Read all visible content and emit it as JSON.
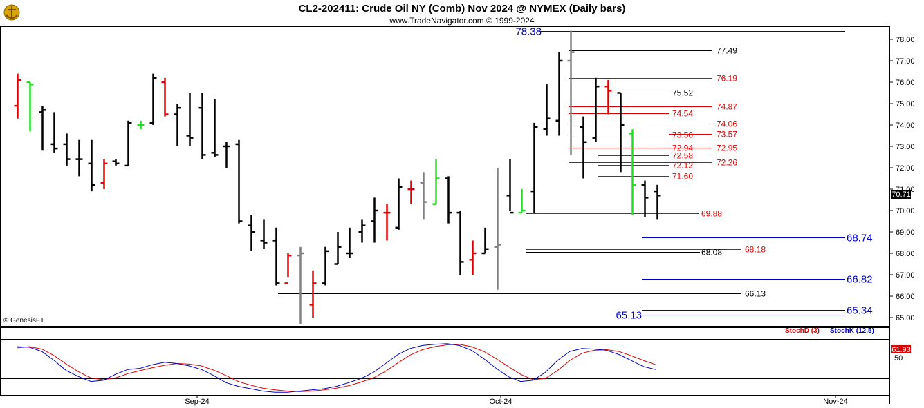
{
  "header": {
    "title": "CL2-202411:  Crude Oil NY (Comb) Nov 2024 @ NYMEX  (Daily bars)",
    "subtitle": "www.TradeNavigator.com © 1999-2024"
  },
  "watermark": "© GenesisFT",
  "logo_icon": "golden-anchor-logo-icon",
  "colors": {
    "up": "#000000",
    "down": "#000000",
    "red": "#e00000",
    "green": "#22dd22",
    "gray": "#808080",
    "blue": "#0000cc",
    "stochD": "#dd0000",
    "stochK": "#0000cc"
  },
  "price_axis": {
    "ticks": [
      "78.00",
      "77.00",
      "76.00",
      "75.00",
      "74.00",
      "73.00",
      "72.00",
      "71.00",
      "70.00",
      "69.00",
      "68.00",
      "67.00",
      "66.00",
      "65.00"
    ],
    "last_price": "70.71"
  },
  "stoch_axis": {
    "label_50": "50",
    "stochD_value": "61.93",
    "legend_d": "StochD (3)",
    "legend_k": "StochK (12,5)"
  },
  "time_axis": {
    "labels": [
      "Sep-24",
      "Oct-24",
      "Nov-24"
    ]
  },
  "levels": [
    {
      "label": "78.38",
      "price": 78.38,
      "color": "blue",
      "big": true,
      "label_side": "left"
    },
    {
      "label": "77.49",
      "price": 77.49,
      "color": "black"
    },
    {
      "label": "76.19",
      "price": 76.19,
      "color": "red"
    },
    {
      "label": "75.52",
      "price": 75.52,
      "color": "black"
    },
    {
      "label": "74.87",
      "price": 74.87,
      "color": "red"
    },
    {
      "label": "74.54",
      "price": 74.54,
      "color": "red"
    },
    {
      "label": "74.06",
      "price": 74.06,
      "color": "red"
    },
    {
      "label": "73.56",
      "price": 73.56,
      "color": "red"
    },
    {
      "label": "73.57",
      "price": 73.57,
      "color": "red"
    },
    {
      "label": "72.94",
      "price": 72.94,
      "color": "red"
    },
    {
      "label": "72.95",
      "price": 72.95,
      "color": "red"
    },
    {
      "label": "72.58",
      "price": 72.58,
      "color": "red"
    },
    {
      "label": "72.12",
      "price": 72.12,
      "color": "red"
    },
    {
      "label": "72.26",
      "price": 72.26,
      "color": "red"
    },
    {
      "label": "71.60",
      "price": 71.6,
      "color": "red"
    },
    {
      "label": "69.88",
      "price": 69.88,
      "color": "red"
    },
    {
      "label": "68.74",
      "price": 68.74,
      "color": "blue",
      "big": true
    },
    {
      "label": "68.18",
      "price": 68.18,
      "color": "red"
    },
    {
      "label": "68.08",
      "price": 68.08,
      "color": "black"
    },
    {
      "label": "66.82",
      "price": 66.82,
      "color": "blue",
      "big": true
    },
    {
      "label": "66.13",
      "price": 66.13,
      "color": "black"
    },
    {
      "label": "65.34",
      "price": 65.34,
      "color": "blue",
      "big": true
    },
    {
      "label": "65.13",
      "price": 65.13,
      "color": "blue",
      "big": true,
      "label_side": "left"
    }
  ],
  "chart_data": {
    "type": "ohlc",
    "title": "CL2-202411:  Crude Oil NY (Comb) Nov 2024 @ NYMEX  (Daily bars)",
    "x_labels": [
      "Sep-24",
      "Oct-24",
      "Nov-24"
    ],
    "ylim": [
      64.6,
      78.7
    ],
    "price_bars": [
      {
        "o": 74.9,
        "h": 76.4,
        "l": 74.3,
        "c": 76.1,
        "col": "red"
      },
      {
        "o": 76.0,
        "h": 76.0,
        "l": 73.7,
        "c": 75.9,
        "col": "green"
      },
      {
        "o": 74.6,
        "h": 74.9,
        "l": 72.8,
        "c": 74.7,
        "col": "black"
      },
      {
        "o": 73.1,
        "h": 74.6,
        "l": 72.7,
        "c": 72.9,
        "col": "black"
      },
      {
        "o": 73.1,
        "h": 73.6,
        "l": 72.1,
        "c": 72.4,
        "col": "black"
      },
      {
        "o": 72.4,
        "h": 73.3,
        "l": 71.6,
        "c": 72.4,
        "col": "black"
      },
      {
        "o": 72.2,
        "h": 73.3,
        "l": 70.9,
        "c": 71.2,
        "col": "black"
      },
      {
        "o": 71.3,
        "h": 72.4,
        "l": 71.0,
        "c": 72.2,
        "col": "red"
      },
      {
        "o": 72.3,
        "h": 72.4,
        "l": 72.1,
        "c": 72.2,
        "col": "black"
      },
      {
        "o": 72.1,
        "h": 74.2,
        "l": 72.1,
        "c": 74.1,
        "col": "black"
      },
      {
        "o": 74.0,
        "h": 74.2,
        "l": 73.8,
        "c": 74.0,
        "col": "green"
      },
      {
        "o": 74.1,
        "h": 76.4,
        "l": 74.0,
        "c": 76.2,
        "col": "black"
      },
      {
        "o": 76.0,
        "h": 76.2,
        "l": 74.4,
        "c": 74.5,
        "col": "red"
      },
      {
        "o": 74.5,
        "h": 75.0,
        "l": 73.0,
        "c": 74.8,
        "col": "black"
      },
      {
        "o": 73.5,
        "h": 75.5,
        "l": 73.0,
        "c": 73.4,
        "col": "black"
      },
      {
        "o": 74.8,
        "h": 75.5,
        "l": 72.4,
        "c": 72.6,
        "col": "black"
      },
      {
        "o": 72.7,
        "h": 75.2,
        "l": 72.5,
        "c": 72.6,
        "col": "black"
      },
      {
        "o": 73.0,
        "h": 73.2,
        "l": 72.0,
        "c": 73.0,
        "col": "black"
      },
      {
        "o": 73.1,
        "h": 73.3,
        "l": 69.4,
        "c": 69.5,
        "col": "black"
      },
      {
        "o": 69.3,
        "h": 69.8,
        "l": 68.1,
        "c": 69.0,
        "col": "black"
      },
      {
        "o": 68.6,
        "h": 69.6,
        "l": 68.2,
        "c": 68.5,
        "col": "black"
      },
      {
        "o": 68.6,
        "h": 69.2,
        "l": 66.5,
        "c": 66.6,
        "col": "black"
      },
      {
        "o": 66.6,
        "h": 68.0,
        "l": 66.9,
        "c": 67.9,
        "col": "red"
      },
      {
        "o": 67.9,
        "h": 68.3,
        "l": 64.7,
        "c": 68.0,
        "col": "gray"
      },
      {
        "o": 65.6,
        "h": 67.2,
        "l": 65.0,
        "c": 66.6,
        "col": "red"
      },
      {
        "o": 66.6,
        "h": 68.3,
        "l": 66.5,
        "c": 68.1,
        "col": "black"
      },
      {
        "o": 67.5,
        "h": 69.0,
        "l": 67.5,
        "c": 68.3,
        "col": "black"
      },
      {
        "o": 68.0,
        "h": 69.2,
        "l": 67.8,
        "c": 68.0,
        "col": "black"
      },
      {
        "o": 69.0,
        "h": 69.6,
        "l": 68.5,
        "c": 69.3,
        "col": "black"
      },
      {
        "o": 69.5,
        "h": 70.6,
        "l": 68.5,
        "c": 70.0,
        "col": "black"
      },
      {
        "o": 69.9,
        "h": 70.3,
        "l": 68.6,
        "c": 69.9,
        "col": "red"
      },
      {
        "o": 69.2,
        "h": 71.5,
        "l": 69.1,
        "c": 71.1,
        "col": "black"
      },
      {
        "o": 71.0,
        "h": 71.4,
        "l": 70.3,
        "c": 71.0,
        "col": "red"
      },
      {
        "o": 71.3,
        "h": 71.8,
        "l": 69.6,
        "c": 70.4,
        "col": "gray"
      },
      {
        "o": 70.3,
        "h": 72.4,
        "l": 70.3,
        "c": 71.5,
        "col": "green"
      },
      {
        "o": 71.5,
        "h": 71.6,
        "l": 69.4,
        "c": 69.9,
        "col": "black"
      },
      {
        "o": 69.9,
        "h": 70.0,
        "l": 67.0,
        "c": 67.6,
        "col": "black"
      },
      {
        "o": 67.7,
        "h": 68.6,
        "l": 67.0,
        "c": 68.0,
        "col": "red"
      },
      {
        "o": 68.0,
        "h": 69.2,
        "l": 68.0,
        "c": 68.2,
        "col": "black"
      },
      {
        "o": 68.3,
        "h": 72.0,
        "l": 66.3,
        "c": 68.4,
        "col": "gray"
      },
      {
        "o": 70.7,
        "h": 72.4,
        "l": 70.0,
        "c": 69.9,
        "col": "black"
      },
      {
        "o": 69.9,
        "h": 71.0,
        "l": 69.9,
        "c": 70.0,
        "col": "green"
      },
      {
        "o": 70.9,
        "h": 74.1,
        "l": 69.9,
        "c": 73.9,
        "col": "black"
      },
      {
        "o": 73.8,
        "h": 75.9,
        "l": 73.5,
        "c": 74.3,
        "col": "black"
      },
      {
        "o": 74.2,
        "h": 77.4,
        "l": 73.5,
        "c": 77.0,
        "col": "black"
      },
      {
        "o": 77.0,
        "h": 78.4,
        "l": 72.6,
        "c": 77.4,
        "col": "gray"
      },
      {
        "o": 73.9,
        "h": 74.4,
        "l": 71.5,
        "c": 73.2,
        "col": "black"
      },
      {
        "o": 73.4,
        "h": 76.2,
        "l": 73.2,
        "c": 75.8,
        "col": "black"
      },
      {
        "o": 75.8,
        "h": 76.1,
        "l": 74.5,
        "c": 75.6,
        "col": "red"
      },
      {
        "o": 75.5,
        "h": 75.5,
        "l": 71.8,
        "c": 74.0,
        "col": "black"
      },
      {
        "o": 73.6,
        "h": 73.8,
        "l": 69.8,
        "c": 71.2,
        "col": "green"
      },
      {
        "o": 71.2,
        "h": 71.4,
        "l": 69.7,
        "c": 70.6,
        "col": "black"
      },
      {
        "o": 70.9,
        "h": 71.2,
        "l": 69.6,
        "c": 70.7,
        "col": "black"
      }
    ],
    "stochastic": {
      "stochD_name": "StochD (3)",
      "stochK_name": "StochK (12,5)",
      "k": [
        78,
        77,
        70,
        55,
        38,
        28,
        20,
        22,
        32,
        40,
        42,
        48,
        52,
        50,
        46,
        40,
        30,
        18,
        12,
        8,
        4,
        2,
        2,
        4,
        6,
        8,
        12,
        18,
        25,
        35,
        50,
        65,
        75,
        80,
        82,
        83,
        80,
        72,
        58,
        42,
        28,
        20,
        22,
        35,
        55,
        70,
        75,
        74,
        72,
        65,
        55,
        45,
        40
      ],
      "d": [
        76,
        78,
        74,
        63,
        49,
        36,
        26,
        23,
        26,
        33,
        38,
        43,
        47,
        50,
        49,
        46,
        39,
        30,
        20,
        14,
        9,
        6,
        4,
        3,
        4,
        6,
        9,
        13,
        19,
        26,
        37,
        51,
        64,
        73,
        78,
        81,
        82,
        78,
        70,
        58,
        45,
        32,
        23,
        25,
        38,
        55,
        67,
        72,
        73,
        70,
        63,
        55,
        48
      ]
    }
  }
}
